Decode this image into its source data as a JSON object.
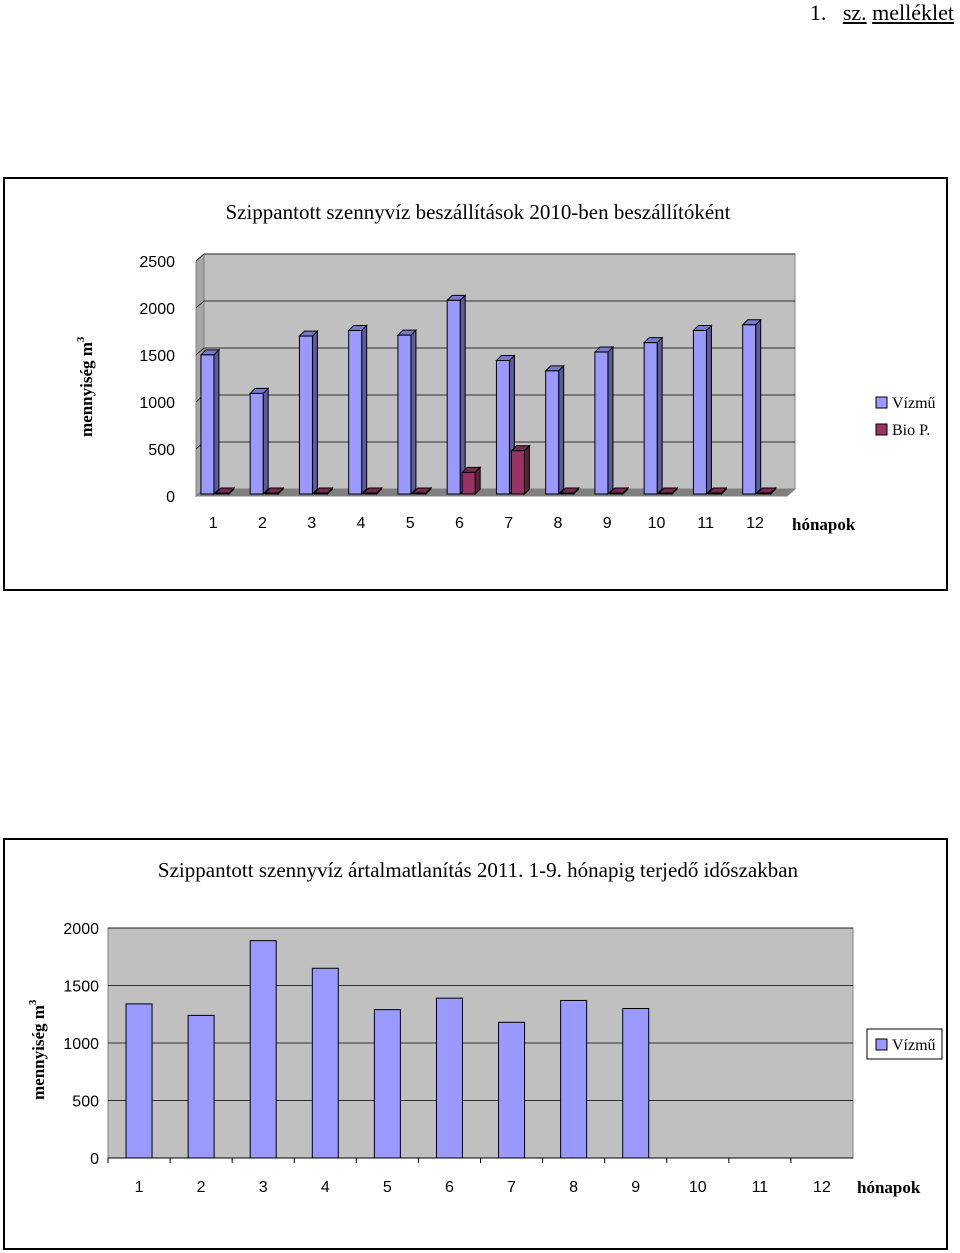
{
  "header": {
    "number": "1.",
    "word_a": "sz.",
    "word_b": "melléklet"
  },
  "chart_data": [
    {
      "type": "bar",
      "title": "Szippantott szennyvíz beszállítások 2010-ben beszállítóként",
      "xlabel": "hónapok",
      "ylabel": "mennyiség m",
      "ylabel_sup": "3",
      "categories": [
        "1",
        "2",
        "3",
        "4",
        "5",
        "6",
        "7",
        "8",
        "9",
        "10",
        "11",
        "12"
      ],
      "ylim": [
        0,
        2500
      ],
      "yticks": [
        "0",
        "500",
        "1000",
        "1500",
        "2000",
        "2500"
      ],
      "grid": true,
      "legend_position": "right",
      "style": "3d",
      "series": [
        {
          "name": "Vízmű",
          "color": "#9999FF",
          "values": [
            1480,
            1070,
            1680,
            1740,
            1690,
            2060,
            1420,
            1310,
            1510,
            1610,
            1740,
            1800
          ]
        },
        {
          "name": "Bio P.",
          "color": "#993366",
          "values": [
            0,
            0,
            0,
            0,
            0,
            230,
            460,
            0,
            0,
            0,
            0,
            0
          ]
        }
      ]
    },
    {
      "type": "bar",
      "title": "Szippantott szennyvíz ártalmatlanítás 2011. 1-9. hónapig terjedő időszakban",
      "xlabel": "hónapok",
      "ylabel": "mennyiség m",
      "ylabel_sup": "3",
      "categories": [
        "1",
        "2",
        "3",
        "4",
        "5",
        "6",
        "7",
        "8",
        "9",
        "10",
        "11",
        "12"
      ],
      "ylim": [
        0,
        2000
      ],
      "yticks": [
        "0",
        "500",
        "1000",
        "1500",
        "2000"
      ],
      "grid": true,
      "legend_position": "right",
      "series": [
        {
          "name": "Vízmű",
          "color": "#9999FF",
          "values": [
            1340,
            1240,
            1890,
            1650,
            1290,
            1390,
            1180,
            1370,
            1300,
            null,
            null,
            null
          ]
        }
      ]
    }
  ]
}
